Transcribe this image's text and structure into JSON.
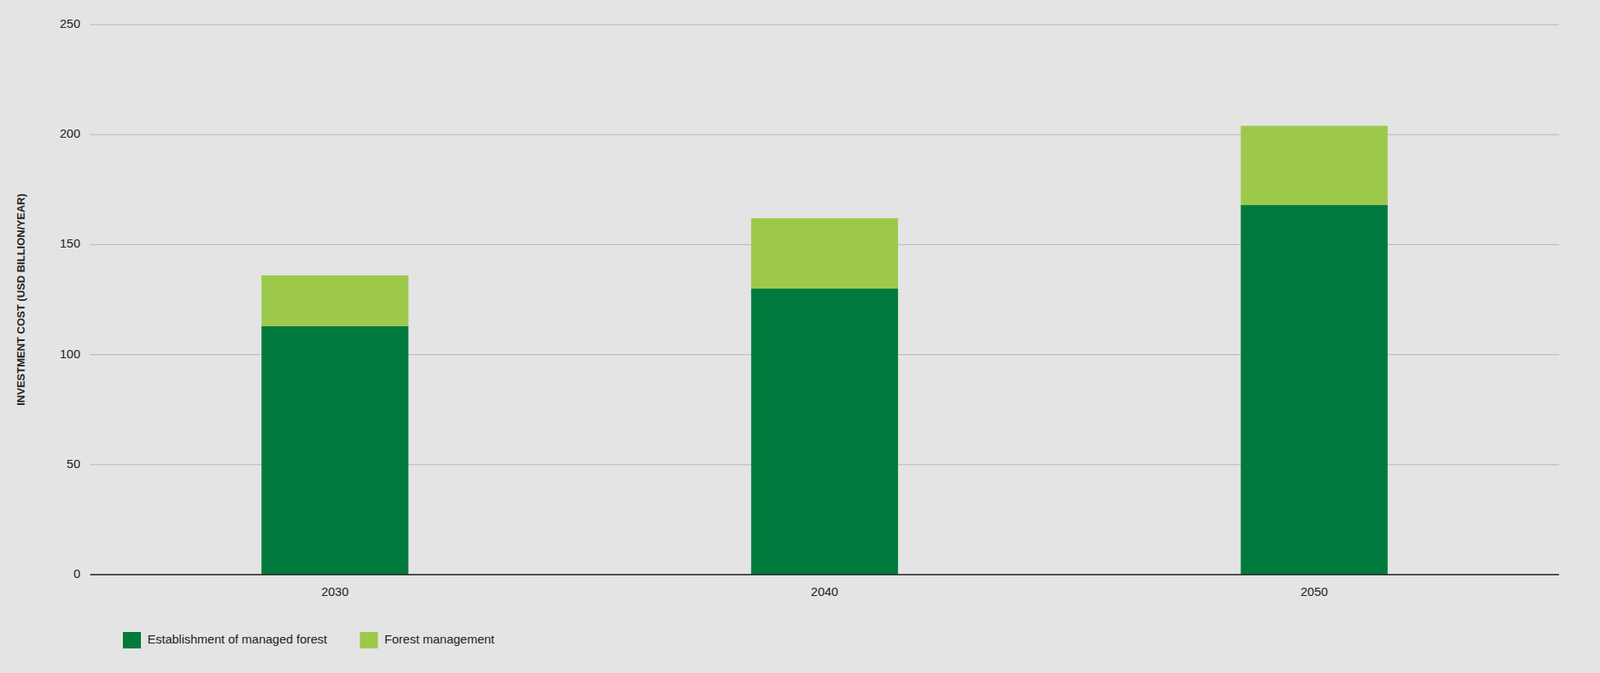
{
  "chart_data": {
    "type": "bar",
    "stacked": true,
    "categories": [
      "2030",
      "2040",
      "2050"
    ],
    "series": [
      {
        "name": "Establishment of managed forest",
        "color": "#007A3D",
        "values": [
          113,
          130,
          168
        ]
      },
      {
        "name": "Forest management",
        "color": "#9DC94A",
        "values": [
          23,
          32,
          36
        ]
      }
    ],
    "ylabel": "INVESTMENT COST (USD BILLION/YEAR)",
    "ylim": [
      0,
      250
    ],
    "yticks": [
      0,
      50,
      100,
      150,
      200,
      250
    ],
    "grid": true,
    "legend": "bottom"
  }
}
